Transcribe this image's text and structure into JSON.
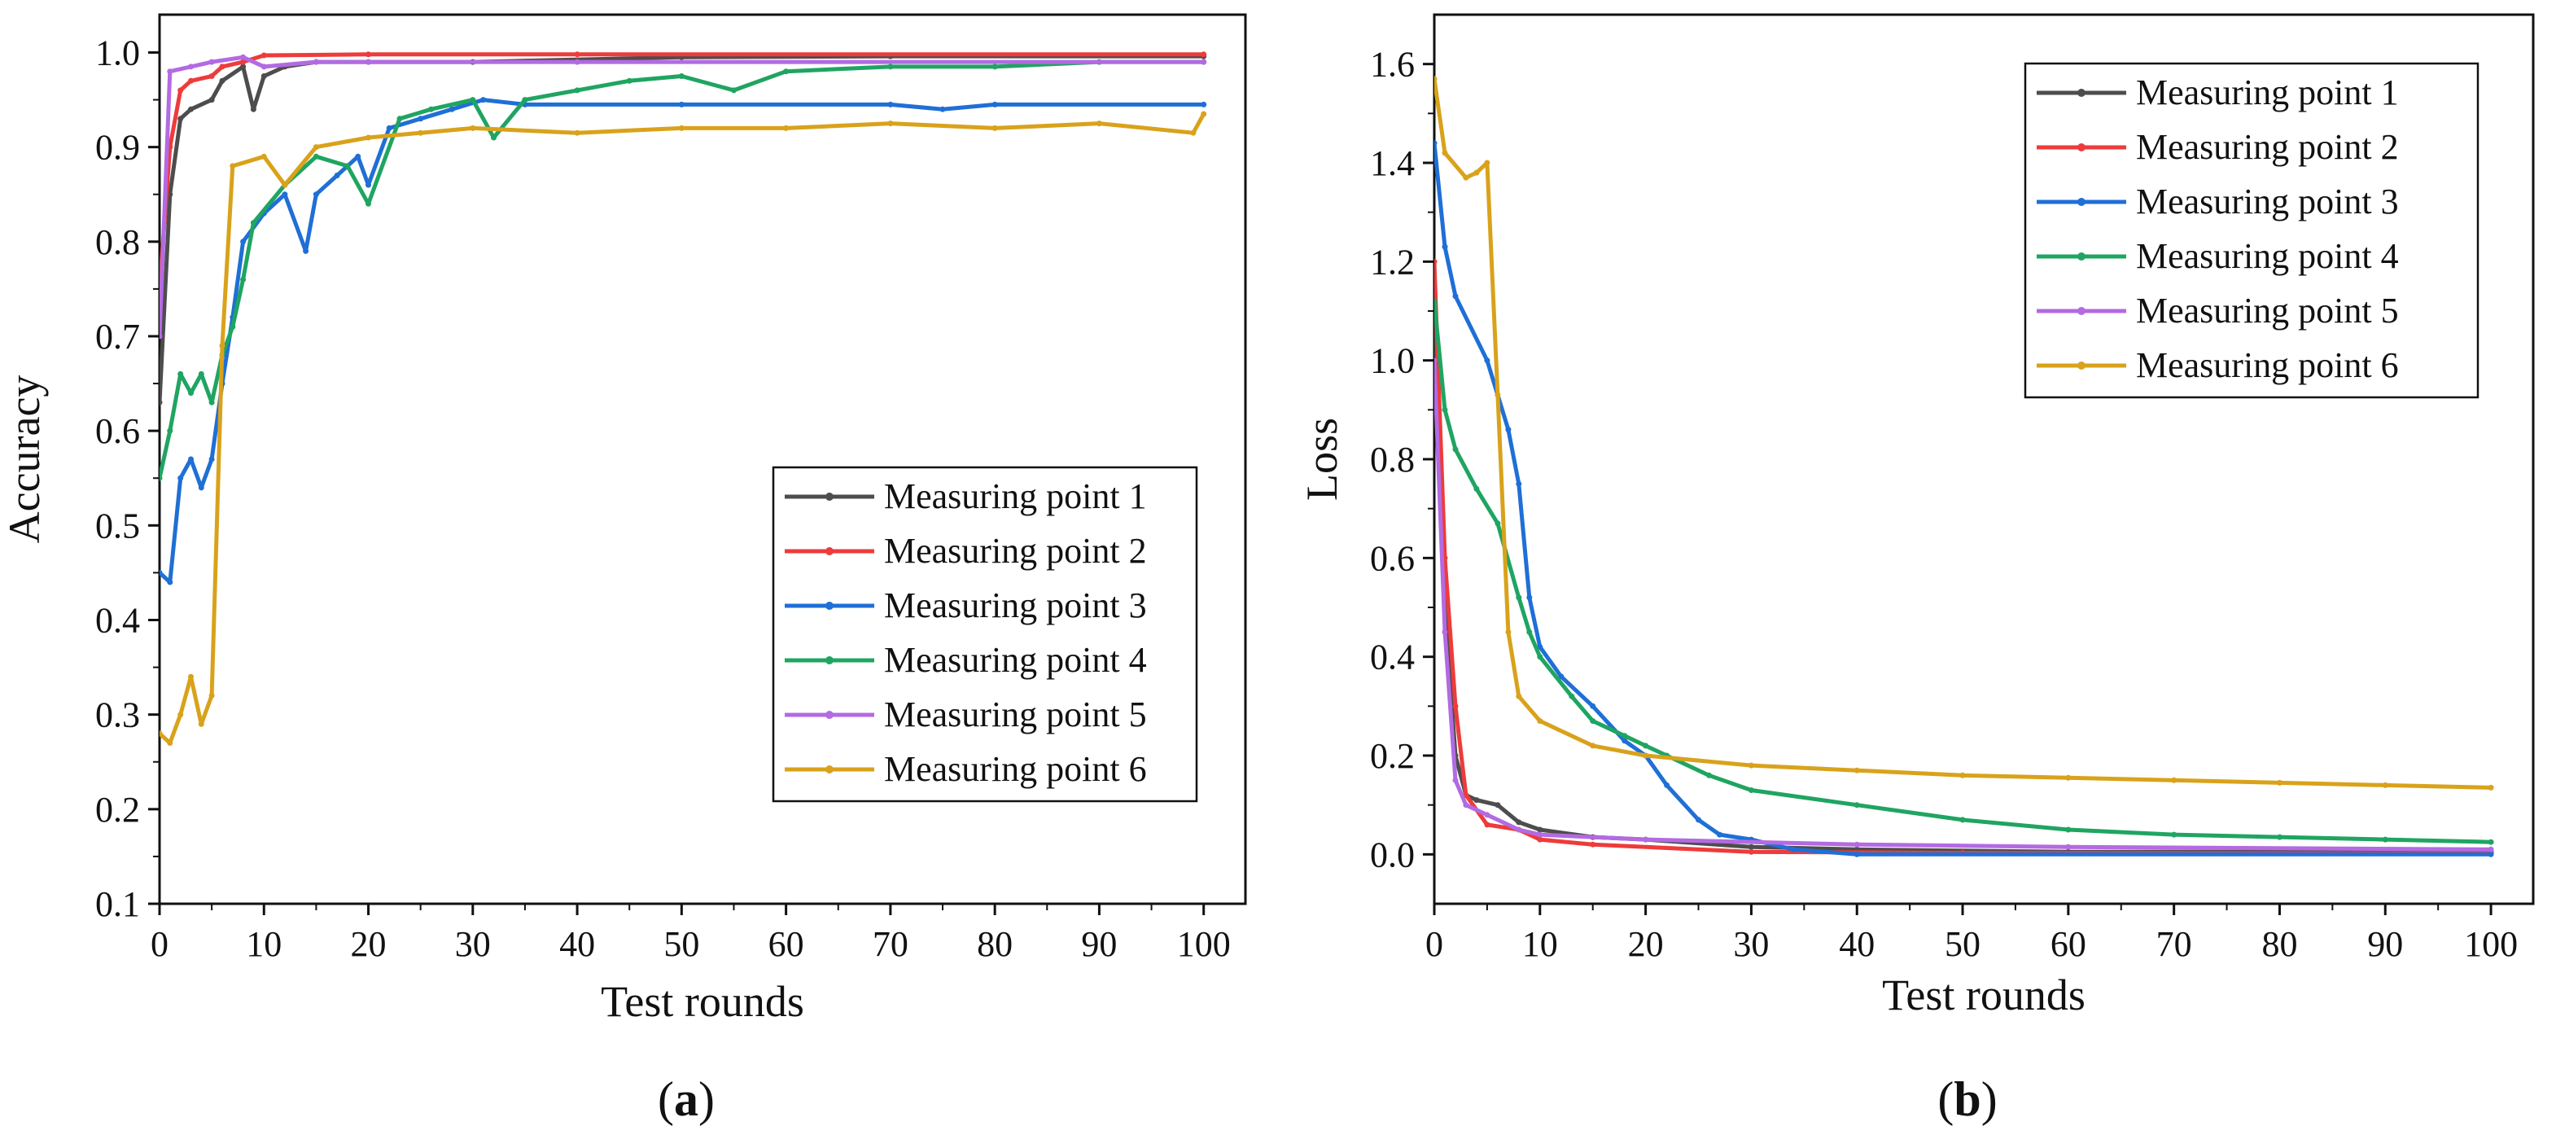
{
  "colors": {
    "series": [
      "#4d4d4d",
      "#ee3b3b",
      "#1f6fd6",
      "#1fa561",
      "#b36ae2",
      "#d9a21b"
    ]
  },
  "chart_data": [
    {
      "id": "a",
      "type": "line",
      "caption": "(a)",
      "caption_letter": "a",
      "xlabel": "Test rounds",
      "ylabel": "Accuracy",
      "xlim": [
        0,
        104
      ],
      "ylim": [
        0.1,
        1.04
      ],
      "xticks": [
        0,
        10,
        20,
        30,
        40,
        50,
        60,
        70,
        80,
        90,
        100
      ],
      "yticks": [
        0.1,
        0.2,
        0.3,
        0.4,
        0.5,
        0.6,
        0.7,
        0.8,
        0.9,
        1.0
      ],
      "ytick_labels": [
        "0.1",
        "0.2",
        "0.3",
        "0.4",
        "0.5",
        "0.6",
        "0.7",
        "0.8",
        "0.9",
        "1.0"
      ],
      "legend_position": "lower-right",
      "series": [
        {
          "name": "Measuring point 1",
          "points": [
            [
              0,
              0.63
            ],
            [
              1,
              0.85
            ],
            [
              2,
              0.93
            ],
            [
              3,
              0.94
            ],
            [
              5,
              0.95
            ],
            [
              6,
              0.97
            ],
            [
              8,
              0.985
            ],
            [
              9,
              0.94
            ],
            [
              10,
              0.975
            ],
            [
              12,
              0.985
            ],
            [
              15,
              0.99
            ],
            [
              20,
              0.99
            ],
            [
              30,
              0.99
            ],
            [
              50,
              0.995
            ],
            [
              70,
              0.996
            ],
            [
              100,
              0.996
            ]
          ]
        },
        {
          "name": "Measuring point 2",
          "points": [
            [
              0,
              0.75
            ],
            [
              1,
              0.9
            ],
            [
              2,
              0.96
            ],
            [
              3,
              0.97
            ],
            [
              5,
              0.975
            ],
            [
              6,
              0.985
            ],
            [
              8,
              0.99
            ],
            [
              10,
              0.997
            ],
            [
              20,
              0.998
            ],
            [
              40,
              0.998
            ],
            [
              100,
              0.998
            ]
          ]
        },
        {
          "name": "Measuring point 3",
          "points": [
            [
              0,
              0.45
            ],
            [
              1,
              0.44
            ],
            [
              2,
              0.55
            ],
            [
              3,
              0.57
            ],
            [
              4,
              0.54
            ],
            [
              5,
              0.57
            ],
            [
              6,
              0.65
            ],
            [
              7,
              0.72
            ],
            [
              8,
              0.8
            ],
            [
              10,
              0.83
            ],
            [
              12,
              0.85
            ],
            [
              14,
              0.79
            ],
            [
              15,
              0.85
            ],
            [
              17,
              0.87
            ],
            [
              19,
              0.89
            ],
            [
              20,
              0.86
            ],
            [
              22,
              0.92
            ],
            [
              25,
              0.93
            ],
            [
              28,
              0.94
            ],
            [
              31,
              0.95
            ],
            [
              35,
              0.945
            ],
            [
              50,
              0.945
            ],
            [
              70,
              0.945
            ],
            [
              75,
              0.94
            ],
            [
              80,
              0.945
            ],
            [
              100,
              0.945
            ]
          ]
        },
        {
          "name": "Measuring point 4",
          "points": [
            [
              0,
              0.55
            ],
            [
              1,
              0.6
            ],
            [
              2,
              0.66
            ],
            [
              3,
              0.64
            ],
            [
              4,
              0.66
            ],
            [
              5,
              0.63
            ],
            [
              6,
              0.68
            ],
            [
              7,
              0.71
            ],
            [
              8,
              0.76
            ],
            [
              9,
              0.82
            ],
            [
              12,
              0.86
            ],
            [
              15,
              0.89
            ],
            [
              18,
              0.88
            ],
            [
              20,
              0.84
            ],
            [
              23,
              0.93
            ],
            [
              26,
              0.94
            ],
            [
              30,
              0.95
            ],
            [
              32,
              0.91
            ],
            [
              35,
              0.95
            ],
            [
              40,
              0.96
            ],
            [
              45,
              0.97
            ],
            [
              50,
              0.975
            ],
            [
              55,
              0.96
            ],
            [
              60,
              0.98
            ],
            [
              70,
              0.985
            ],
            [
              80,
              0.985
            ],
            [
              90,
              0.99
            ],
            [
              100,
              0.99
            ]
          ]
        },
        {
          "name": "Measuring point 5",
          "points": [
            [
              0,
              0.7
            ],
            [
              1,
              0.98
            ],
            [
              3,
              0.985
            ],
            [
              5,
              0.99
            ],
            [
              8,
              0.995
            ],
            [
              10,
              0.985
            ],
            [
              15,
              0.99
            ],
            [
              20,
              0.99
            ],
            [
              40,
              0.99
            ],
            [
              100,
              0.99
            ]
          ]
        },
        {
          "name": "Measuring point 6",
          "points": [
            [
              0,
              0.28
            ],
            [
              1,
              0.27
            ],
            [
              2,
              0.3
            ],
            [
              3,
              0.34
            ],
            [
              4,
              0.29
            ],
            [
              5,
              0.32
            ],
            [
              6,
              0.69
            ],
            [
              7,
              0.88
            ],
            [
              10,
              0.89
            ],
            [
              12,
              0.86
            ],
            [
              15,
              0.9
            ],
            [
              20,
              0.91
            ],
            [
              25,
              0.915
            ],
            [
              30,
              0.92
            ],
            [
              40,
              0.915
            ],
            [
              50,
              0.92
            ],
            [
              60,
              0.92
            ],
            [
              70,
              0.925
            ],
            [
              80,
              0.92
            ],
            [
              90,
              0.925
            ],
            [
              99,
              0.915
            ],
            [
              100,
              0.935
            ]
          ]
        }
      ]
    },
    {
      "id": "b",
      "type": "line",
      "caption": "(b)",
      "caption_letter": "b",
      "xlabel": "Test rounds",
      "ylabel": "Loss",
      "xlim": [
        0,
        104
      ],
      "ylim": [
        -0.1,
        1.7
      ],
      "xticks": [
        0,
        10,
        20,
        30,
        40,
        50,
        60,
        70,
        80,
        90,
        100
      ],
      "yticks": [
        0.0,
        0.2,
        0.4,
        0.6,
        0.8,
        1.0,
        1.2,
        1.4,
        1.6
      ],
      "ytick_labels": [
        "0.0",
        "0.2",
        "0.4",
        "0.6",
        "0.8",
        "1.0",
        "1.2",
        "1.4",
        "1.6"
      ],
      "legend_position": "top-right",
      "series": [
        {
          "name": "Measuring point 1",
          "points": [
            [
              0,
              1.1
            ],
            [
              1,
              0.5
            ],
            [
              2,
              0.2
            ],
            [
              3,
              0.12
            ],
            [
              4,
              0.11
            ],
            [
              6,
              0.1
            ],
            [
              8,
              0.065
            ],
            [
              10,
              0.05
            ],
            [
              15,
              0.035
            ],
            [
              20,
              0.03
            ],
            [
              30,
              0.015
            ],
            [
              40,
              0.01
            ],
            [
              60,
              0.005
            ],
            [
              100,
              0.005
            ]
          ]
        },
        {
          "name": "Measuring point 2",
          "points": [
            [
              0,
              1.2
            ],
            [
              1,
              0.6
            ],
            [
              2,
              0.3
            ],
            [
              3,
              0.12
            ],
            [
              5,
              0.06
            ],
            [
              8,
              0.05
            ],
            [
              10,
              0.03
            ],
            [
              15,
              0.02
            ],
            [
              30,
              0.005
            ],
            [
              50,
              0.003
            ],
            [
              100,
              0.002
            ]
          ]
        },
        {
          "name": "Measuring point 3",
          "points": [
            [
              0,
              1.44
            ],
            [
              1,
              1.23
            ],
            [
              2,
              1.13
            ],
            [
              5,
              1.0
            ],
            [
              7,
              0.86
            ],
            [
              8,
              0.75
            ],
            [
              9,
              0.52
            ],
            [
              10,
              0.42
            ],
            [
              12,
              0.36
            ],
            [
              15,
              0.3
            ],
            [
              18,
              0.23
            ],
            [
              20,
              0.2
            ],
            [
              22,
              0.14
            ],
            [
              25,
              0.07
            ],
            [
              27,
              0.04
            ],
            [
              30,
              0.03
            ],
            [
              34,
              0.01
            ],
            [
              40,
              0.0
            ],
            [
              100,
              0.0
            ]
          ]
        },
        {
          "name": "Measuring point 4",
          "points": [
            [
              0,
              1.12
            ],
            [
              1,
              0.9
            ],
            [
              2,
              0.82
            ],
            [
              4,
              0.74
            ],
            [
              6,
              0.67
            ],
            [
              8,
              0.52
            ],
            [
              9,
              0.45
            ],
            [
              10,
              0.4
            ],
            [
              13,
              0.32
            ],
            [
              15,
              0.27
            ],
            [
              18,
              0.24
            ],
            [
              20,
              0.22
            ],
            [
              22,
              0.2
            ],
            [
              26,
              0.16
            ],
            [
              30,
              0.13
            ],
            [
              40,
              0.1
            ],
            [
              50,
              0.07
            ],
            [
              60,
              0.05
            ],
            [
              70,
              0.04
            ],
            [
              80,
              0.035
            ],
            [
              90,
              0.03
            ],
            [
              100,
              0.025
            ]
          ]
        },
        {
          "name": "Measuring point 5",
          "points": [
            [
              0,
              1.0
            ],
            [
              1,
              0.45
            ],
            [
              2,
              0.15
            ],
            [
              3,
              0.1
            ],
            [
              5,
              0.08
            ],
            [
              8,
              0.05
            ],
            [
              10,
              0.04
            ],
            [
              20,
              0.03
            ],
            [
              40,
              0.02
            ],
            [
              60,
              0.015
            ],
            [
              100,
              0.01
            ]
          ]
        },
        {
          "name": "Measuring point 6",
          "points": [
            [
              0,
              1.57
            ],
            [
              1,
              1.42
            ],
            [
              3,
              1.37
            ],
            [
              4,
              1.38
            ],
            [
              5,
              1.4
            ],
            [
              6,
              0.93
            ],
            [
              7,
              0.45
            ],
            [
              8,
              0.32
            ],
            [
              10,
              0.27
            ],
            [
              15,
              0.22
            ],
            [
              20,
              0.2
            ],
            [
              30,
              0.18
            ],
            [
              40,
              0.17
            ],
            [
              50,
              0.16
            ],
            [
              60,
              0.155
            ],
            [
              70,
              0.15
            ],
            [
              80,
              0.145
            ],
            [
              90,
              0.14
            ],
            [
              100,
              0.135
            ]
          ]
        }
      ]
    }
  ]
}
